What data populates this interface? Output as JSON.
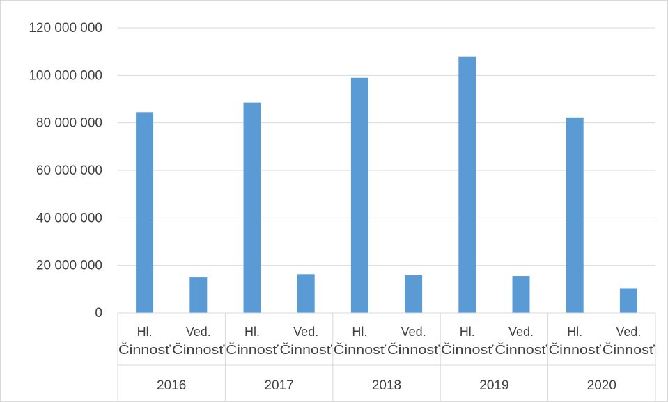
{
  "chart_data": {
    "type": "bar",
    "title": "",
    "xlabel": "",
    "ylabel": "",
    "ylim": [
      0,
      120000000
    ],
    "yticks": [
      0,
      20000000,
      40000000,
      60000000,
      80000000,
      100000000,
      120000000
    ],
    "ytick_labels": [
      "0",
      "20 000 000",
      "40 000 000",
      "60 000 000",
      "80 000 000",
      "100 000 000",
      "120 000 000"
    ],
    "grid": true,
    "legend": "none",
    "bar_color": "#5b9bd5",
    "groups": [
      {
        "year": "2016",
        "items": [
          {
            "label_line1": "Hl.",
            "label_line2": "Činnosť",
            "value": 84500000
          },
          {
            "label_line1": "Ved.",
            "label_line2": "Činnosť",
            "value": 15200000
          }
        ]
      },
      {
        "year": "2017",
        "items": [
          {
            "label_line1": "Hl.",
            "label_line2": "Činnosť",
            "value": 88500000
          },
          {
            "label_line1": "Ved.",
            "label_line2": "Činnosť",
            "value": 16300000
          }
        ]
      },
      {
        "year": "2018",
        "items": [
          {
            "label_line1": "Hl.",
            "label_line2": "Činnosť",
            "value": 99000000
          },
          {
            "label_line1": "Ved.",
            "label_line2": "Činnosť",
            "value": 15800000
          }
        ]
      },
      {
        "year": "2019",
        "items": [
          {
            "label_line1": "Hl.",
            "label_line2": "Činnosť",
            "value": 107800000
          },
          {
            "label_line1": "Ved.",
            "label_line2": "Činnosť",
            "value": 15500000
          }
        ]
      },
      {
        "year": "2020",
        "items": [
          {
            "label_line1": "Hl.",
            "label_line2": "Činnosť",
            "value": 82300000
          },
          {
            "label_line1": "Ved.",
            "label_line2": "Činnosť",
            "value": 10400000
          }
        ]
      }
    ]
  }
}
